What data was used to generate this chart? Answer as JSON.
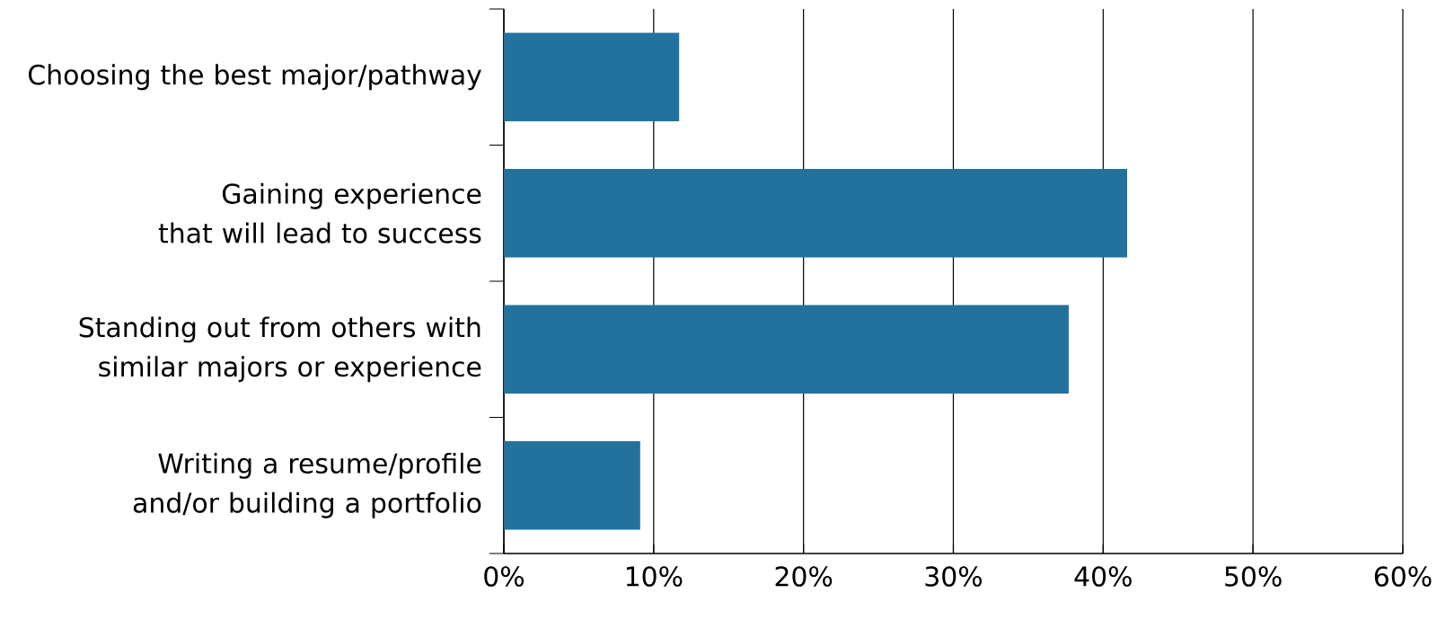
{
  "chart_data": {
    "type": "bar",
    "orientation": "horizontal",
    "categories": [
      "Choosing the best major/pathway",
      "Gaining experience that will lead to success",
      "Standing out from others with similar majors or experience",
      "Writing a resume/profile and/or building a portfolio"
    ],
    "values": [
      11.7,
      41.6,
      37.7,
      9.1
    ],
    "color": "#23729d",
    "xlim": [
      0,
      60
    ],
    "xticks": [
      {
        "value": 0,
        "label": "0%"
      },
      {
        "value": 10,
        "label": "10%"
      },
      {
        "value": 20,
        "label": "20%"
      },
      {
        "value": 30,
        "label": "30%"
      },
      {
        "value": 40,
        "label": "40%"
      },
      {
        "value": 50,
        "label": "50%"
      },
      {
        "value": 60,
        "label": "60%"
      }
    ],
    "grid": "x"
  }
}
